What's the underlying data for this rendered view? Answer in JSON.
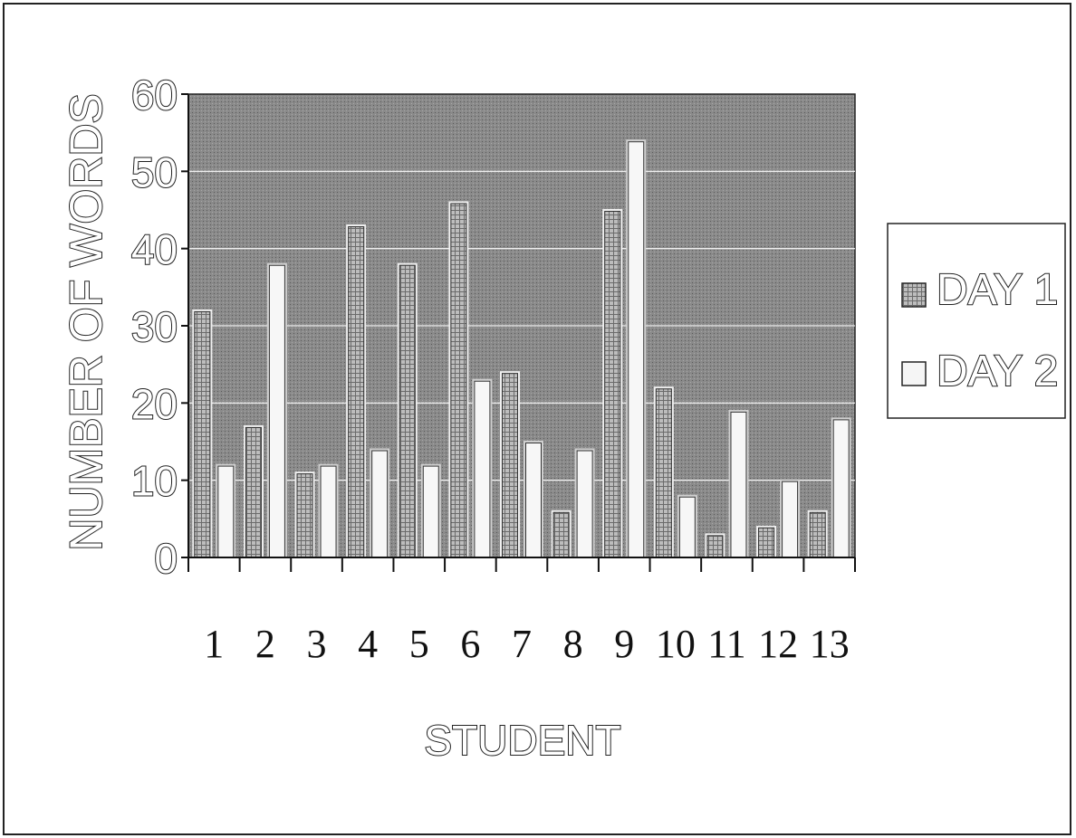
{
  "chart_data": {
    "type": "bar",
    "xlabel": "STUDENT",
    "ylabel": "NUMBER OF WORDS",
    "categories": [
      "1",
      "2",
      "3",
      "4",
      "5",
      "6",
      "7",
      "8",
      "9",
      "10",
      "11",
      "12",
      "13"
    ],
    "series": [
      {
        "name": "DAY 1",
        "values": [
          32,
          17,
          11,
          43,
          38,
          46,
          24,
          6,
          45,
          22,
          3,
          4,
          6
        ]
      },
      {
        "name": "DAY 2",
        "values": [
          12,
          38,
          12,
          14,
          12,
          23,
          15,
          14,
          54,
          8,
          19,
          10,
          18
        ]
      }
    ],
    "ylim": [
      0,
      60
    ],
    "yticks": [
      "0",
      "10",
      "20",
      "30",
      "40",
      "50",
      "60"
    ],
    "grid": true,
    "legend_position": "right",
    "colors": {
      "plot_background": "#8a8a8a",
      "day1_bar": "#b8b8b8",
      "day2_bar": "#f7f7f7",
      "gridline": "#ffffff"
    }
  }
}
